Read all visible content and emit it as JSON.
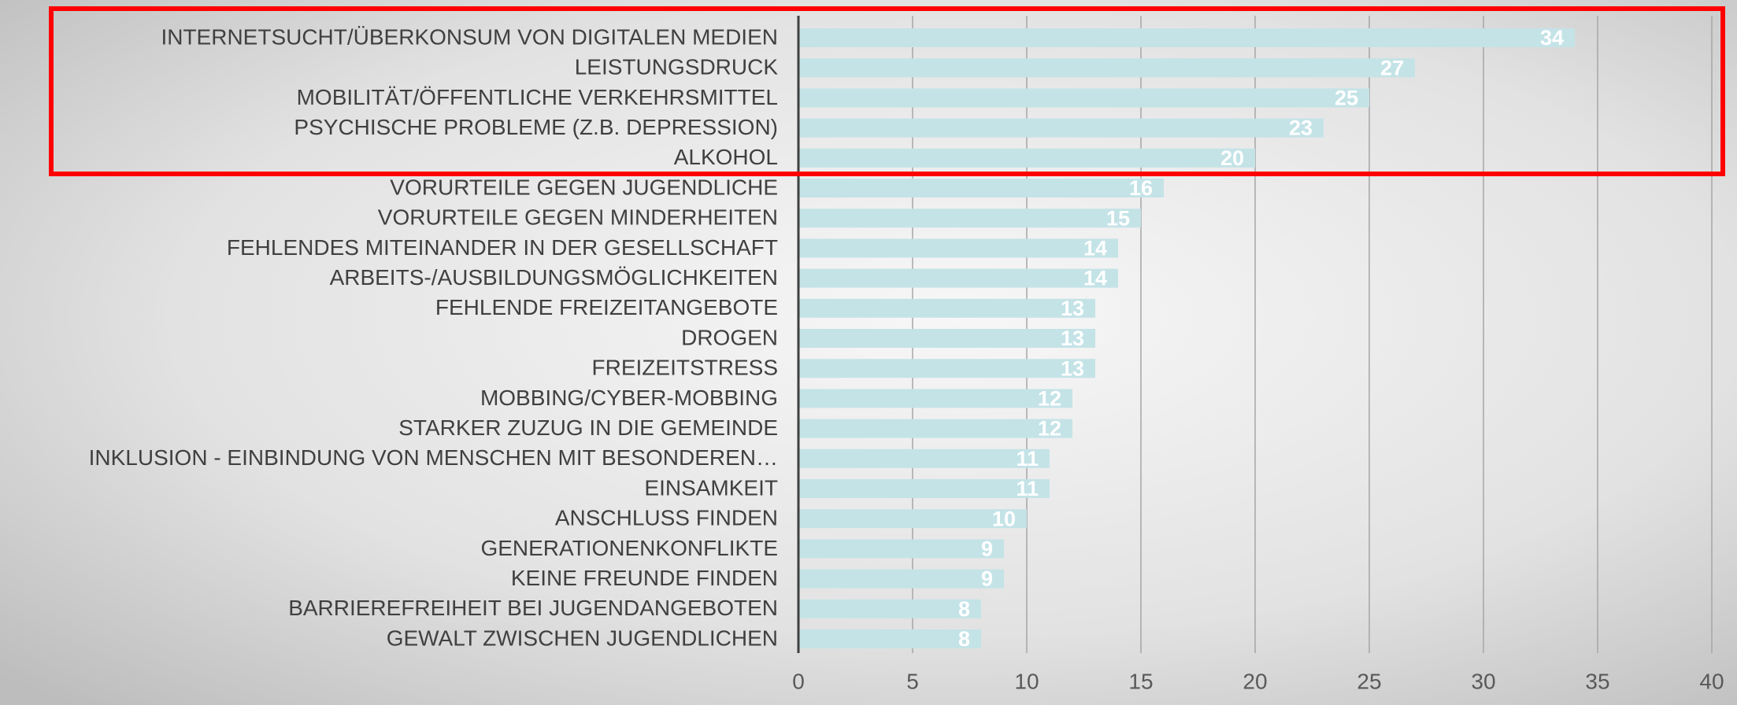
{
  "chart_data": {
    "type": "barh",
    "categories": [
      "INTERNETSUCHT/ÜBERKONSUM VON DIGITALEN MEDIEN",
      "LEISTUNGSDRUCK",
      "MOBILITÄT/ÖFFENTLICHE VERKEHRSMITTEL",
      "PSYCHISCHE PROBLEME (Z.B. DEPRESSION)",
      "ALKOHOL",
      "VORURTEILE GEGEN JUGENDLICHE",
      "VORURTEILE GEGEN MINDERHEITEN",
      "FEHLENDES MITEINANDER IN DER GESELLSCHAFT",
      "ARBEITS-/AUSBILDUNGSMÖGLICHKEITEN",
      "FEHLENDE FREIZEITANGEBOTE",
      "DROGEN",
      "FREIZEITSTRESS",
      "MOBBING/CYBER-MOBBING",
      "STARKER ZUZUG IN DIE GEMEINDE",
      "INKLUSION - EINBINDUNG VON MENSCHEN MIT BESONDEREN…",
      "EINSAMKEIT",
      "ANSCHLUSS FINDEN",
      "GENERATIONENKONFLIKTE",
      "KEINE FREUNDE FINDEN",
      "BARRIEREFREIHEIT BEI JUGENDANGEBOTEN",
      "GEWALT ZWISCHEN JUGENDLICHEN"
    ],
    "values": [
      34,
      27,
      25,
      23,
      20,
      16,
      15,
      14,
      14,
      13,
      13,
      13,
      12,
      12,
      11,
      11,
      10,
      9,
      9,
      8,
      8
    ],
    "color": "#c4e3e7",
    "xlim": [
      0,
      40
    ],
    "xticks": [
      0,
      5,
      10,
      15,
      20,
      25,
      30,
      35,
      40
    ],
    "grid": true
  }
}
